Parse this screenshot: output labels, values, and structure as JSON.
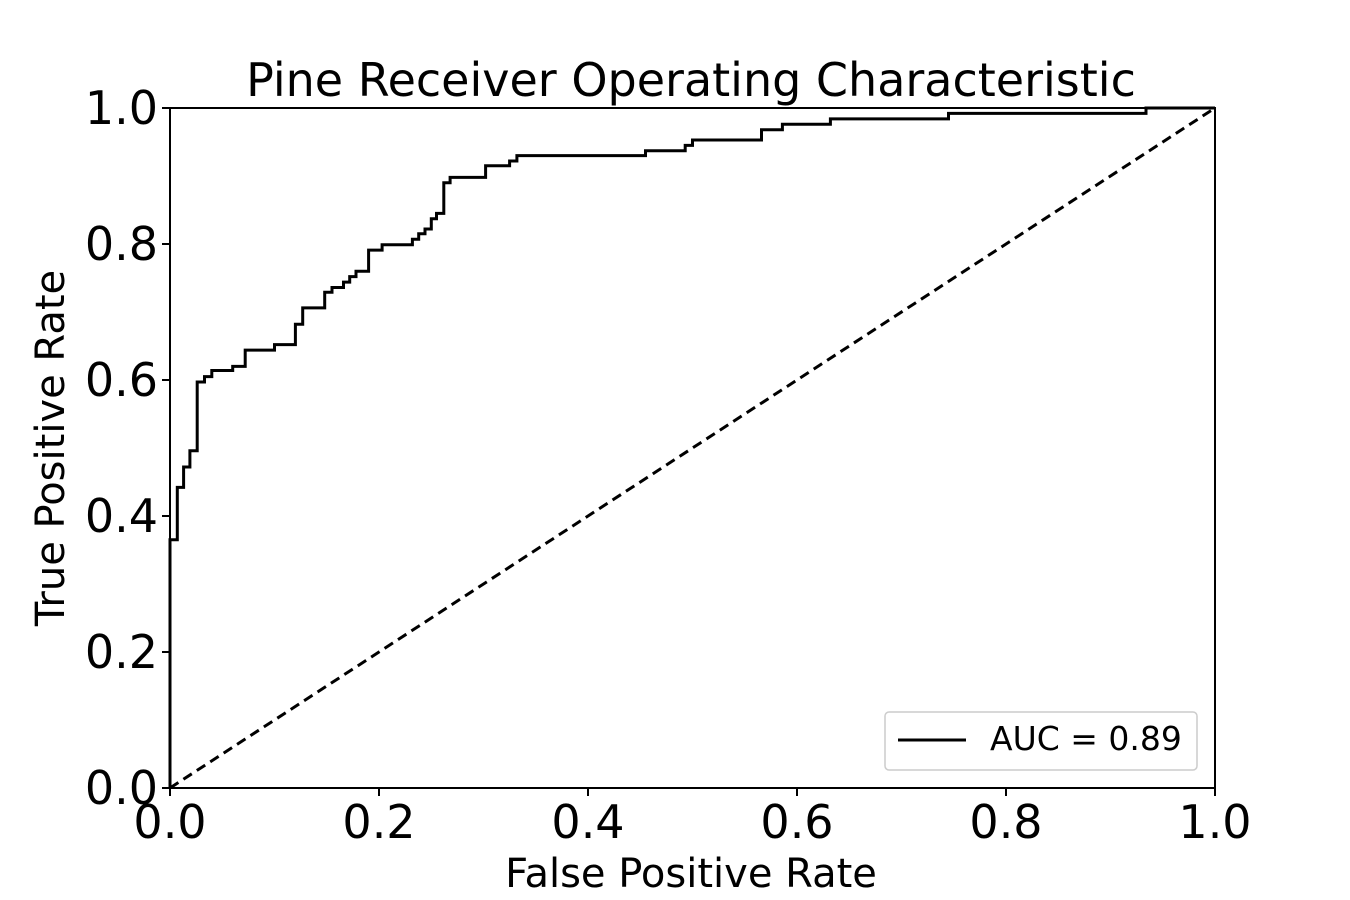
{
  "chart_data": {
    "type": "line",
    "title": "Pine Receiver Operating Characteristic",
    "xlabel": "False Positive Rate",
    "ylabel": "True Positive Rate",
    "xlim": [
      0.0,
      1.0
    ],
    "ylim": [
      0.0,
      1.0
    ],
    "xticks": [
      "0.0",
      "0.2",
      "0.4",
      "0.6",
      "0.8",
      "1.0"
    ],
    "yticks": [
      "0.0",
      "0.2",
      "0.4",
      "0.6",
      "0.8",
      "1.0"
    ],
    "grid": false,
    "legend_position": "lower-right",
    "series": [
      {
        "name": "AUC = 0.89",
        "style": "solid",
        "color": "#000000",
        "x": [
          0.0,
          0.0,
          0.007,
          0.007,
          0.013,
          0.013,
          0.019,
          0.019,
          0.026,
          0.026,
          0.033,
          0.033,
          0.04,
          0.04,
          0.06,
          0.06,
          0.072,
          0.072,
          0.1,
          0.1,
          0.12,
          0.12,
          0.127,
          0.127,
          0.148,
          0.148,
          0.155,
          0.155,
          0.166,
          0.166,
          0.172,
          0.172,
          0.178,
          0.178,
          0.19,
          0.19,
          0.203,
          0.203,
          0.232,
          0.232,
          0.238,
          0.238,
          0.244,
          0.244,
          0.25,
          0.25,
          0.255,
          0.255,
          0.262,
          0.262,
          0.268,
          0.268,
          0.302,
          0.302,
          0.325,
          0.325,
          0.332,
          0.332,
          0.455,
          0.455,
          0.493,
          0.493,
          0.5,
          0.5,
          0.566,
          0.566,
          0.586,
          0.586,
          0.632,
          0.632,
          0.745,
          0.745,
          0.934,
          0.934,
          1.0
        ],
        "y": [
          0.0,
          0.365,
          0.365,
          0.442,
          0.442,
          0.472,
          0.472,
          0.496,
          0.496,
          0.597,
          0.597,
          0.605,
          0.605,
          0.614,
          0.614,
          0.62,
          0.62,
          0.644,
          0.644,
          0.652,
          0.652,
          0.682,
          0.682,
          0.706,
          0.706,
          0.729,
          0.729,
          0.736,
          0.736,
          0.744,
          0.744,
          0.752,
          0.752,
          0.76,
          0.76,
          0.791,
          0.791,
          0.799,
          0.799,
          0.807,
          0.807,
          0.815,
          0.815,
          0.822,
          0.822,
          0.837,
          0.837,
          0.845,
          0.845,
          0.89,
          0.89,
          0.898,
          0.898,
          0.915,
          0.915,
          0.922,
          0.922,
          0.93,
          0.93,
          0.937,
          0.937,
          0.945,
          0.945,
          0.953,
          0.953,
          0.968,
          0.968,
          0.976,
          0.976,
          0.984,
          0.984,
          0.992,
          0.992,
          1.0,
          1.0
        ]
      },
      {
        "style": "dashed",
        "color": "#000000",
        "x": [
          0.0,
          1.0
        ],
        "y": [
          0.0,
          1.0
        ]
      }
    ]
  }
}
